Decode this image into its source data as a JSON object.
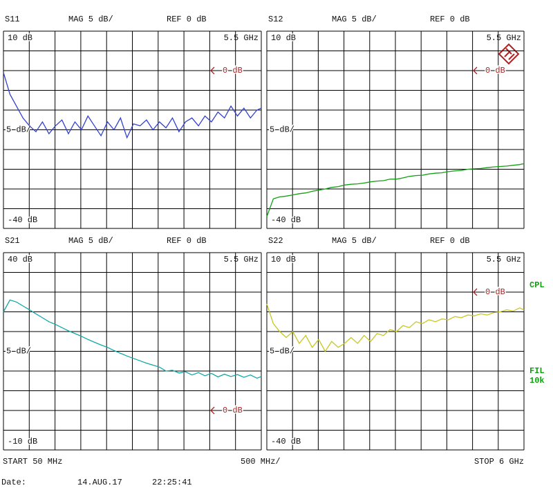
{
  "chart_data": [
    {
      "type": "line",
      "title": "S11",
      "scale_header": "MAG 5 dB/",
      "ref_header": "REF 0 dB",
      "marker_label": "5.5 GHz",
      "scale_label": "5 dB/",
      "ref": {
        "value": 0,
        "label": "0 dB"
      },
      "ylim": [
        -40,
        10
      ],
      "yticks": [
        {
          "value": 10,
          "label": "10 dB"
        },
        {
          "value": -40,
          "label": "-40 dB"
        }
      ],
      "xlim": [
        50,
        6000
      ],
      "color": "#3040d0",
      "x": [
        50,
        200,
        350,
        500,
        650,
        800,
        950,
        1100,
        1250,
        1400,
        1550,
        1700,
        1850,
        2000,
        2150,
        2300,
        2450,
        2600,
        2750,
        2900,
        3050,
        3200,
        3350,
        3500,
        3650,
        3800,
        3950,
        4100,
        4250,
        4400,
        4550,
        4700,
        4850,
        5000,
        5150,
        5300,
        5450,
        5600,
        5750,
        5900,
        6000
      ],
      "values": [
        -0.5,
        -6,
        -9,
        -12,
        -14,
        -15.5,
        -13,
        -16,
        -14,
        -12.5,
        -16,
        -13,
        -15,
        -11.5,
        -14,
        -16.5,
        -13,
        -15,
        -12,
        -17,
        -13.5,
        -14,
        -12.5,
        -15,
        -13,
        -14.5,
        -12,
        -15.5,
        -13,
        -12,
        -14,
        -11.5,
        -13,
        -10.5,
        -12,
        -9,
        -11.5,
        -9.5,
        -12,
        -10,
        -9.5
      ]
    },
    {
      "type": "line",
      "title": "S12",
      "scale_header": "MAG 5 dB/",
      "ref_header": "REF 0 dB",
      "marker_label": "5.5 GHz",
      "scale_label": "5 dB/",
      "ref": {
        "value": 0,
        "label": "0 dB"
      },
      "ylim": [
        -40,
        10
      ],
      "yticks": [
        {
          "value": 10,
          "label": "10 dB"
        },
        {
          "value": -40,
          "label": "-40 dB"
        }
      ],
      "xlim": [
        50,
        6000
      ],
      "color": "#10a010",
      "x": [
        50,
        200,
        350,
        500,
        650,
        800,
        950,
        1100,
        1250,
        1400,
        1550,
        1700,
        1850,
        2000,
        2150,
        2300,
        2450,
        2600,
        2750,
        2900,
        3050,
        3200,
        3350,
        3500,
        3650,
        3800,
        3950,
        4100,
        4250,
        4400,
        4550,
        4700,
        4850,
        5000,
        5150,
        5300,
        5450,
        5600,
        5750,
        5900,
        6000
      ],
      "values": [
        -37,
        -32.5,
        -32,
        -31.8,
        -31.5,
        -31.2,
        -31,
        -30.6,
        -30.3,
        -30,
        -29.6,
        -29.4,
        -29,
        -28.8,
        -28.7,
        -28.5,
        -28.2,
        -28,
        -27.9,
        -27.5,
        -27.5,
        -27.2,
        -26.8,
        -26.6,
        -26.5,
        -26.2,
        -26,
        -25.9,
        -25.6,
        -25.4,
        -25.3,
        -25,
        -24.9,
        -24.8,
        -24.6,
        -24.4,
        -24.3,
        -24.2,
        -24,
        -23.8,
        -23.6
      ]
    },
    {
      "type": "line",
      "title": "S21",
      "scale_header": "MAG 5 dB/",
      "ref_header": "REF 0 dB",
      "marker_label": "5.5 GHz",
      "scale_label": "5 dB/",
      "ref": {
        "value": 0,
        "label": "0 dB"
      },
      "ylim": [
        -10,
        40
      ],
      "yticks": [
        {
          "value": 40,
          "label": "40 dB"
        },
        {
          "value": -10,
          "label": "-10 dB"
        }
      ],
      "xlim": [
        50,
        6000
      ],
      "color": "#10a8a8",
      "x": [
        50,
        200,
        350,
        500,
        650,
        800,
        950,
        1100,
        1250,
        1400,
        1550,
        1700,
        1850,
        2000,
        2150,
        2300,
        2450,
        2600,
        2750,
        2900,
        3050,
        3200,
        3350,
        3500,
        3650,
        3800,
        3950,
        4100,
        4250,
        4400,
        4550,
        4700,
        4850,
        5000,
        5150,
        5300,
        5450,
        5600,
        5750,
        5900,
        6000
      ],
      "values": [
        25,
        28,
        27.5,
        26.5,
        25.5,
        24.5,
        23.5,
        22.5,
        21.8,
        21,
        20.2,
        19.5,
        18.8,
        18,
        17.3,
        16.6,
        16,
        15.2,
        14.5,
        13.8,
        13.2,
        12.6,
        12,
        11.5,
        11,
        10,
        10.2,
        9.5,
        9.8,
        9,
        9.6,
        8.8,
        9.4,
        8.5,
        9.2,
        8.6,
        9.1,
        8.4,
        9,
        8.2,
        8.6
      ]
    },
    {
      "type": "line",
      "title": "S22",
      "scale_header": "MAG 5 dB/",
      "ref_header": "REF 0 dB",
      "marker_label": "5.5 GHz",
      "scale_label": "5 dB/",
      "ref": {
        "value": 0,
        "label": "0 dB"
      },
      "ylim": [
        -40,
        10
      ],
      "yticks": [
        {
          "value": 10,
          "label": "10 dB"
        },
        {
          "value": -40,
          "label": "-40 dB"
        }
      ],
      "xlim": [
        50,
        6000
      ],
      "color": "#c8c820",
      "x": [
        50,
        200,
        350,
        500,
        650,
        800,
        950,
        1100,
        1250,
        1400,
        1550,
        1700,
        1850,
        2000,
        2150,
        2300,
        2450,
        2600,
        2750,
        2900,
        3050,
        3200,
        3350,
        3500,
        3650,
        3800,
        3950,
        4100,
        4250,
        4400,
        4550,
        4700,
        4850,
        5000,
        5150,
        5300,
        5450,
        5600,
        5750,
        5900,
        6000
      ],
      "values": [
        -3,
        -8,
        -10,
        -11.5,
        -10,
        -13,
        -11,
        -14,
        -12,
        -15,
        -12.5,
        -14,
        -13,
        -11.5,
        -13,
        -11,
        -12.5,
        -10.5,
        -11,
        -9.5,
        -10,
        -8.5,
        -9,
        -7.5,
        -8,
        -7,
        -7.5,
        -6.8,
        -7,
        -6.2,
        -6.5,
        -5.8,
        -6,
        -5.5,
        -5.8,
        -5.2,
        -5,
        -4.5,
        -4.8,
        -4,
        -4.5
      ]
    }
  ],
  "footer": {
    "start": "START  50 MHz",
    "span": "500 MHz/",
    "stop": "STOP 6 GHz",
    "date_label": "Date:",
    "date": "14.AUG.17",
    "time": "22:25:41"
  },
  "side": {
    "cpl": "CPL",
    "fil": "FIL",
    "bw": "10k"
  }
}
